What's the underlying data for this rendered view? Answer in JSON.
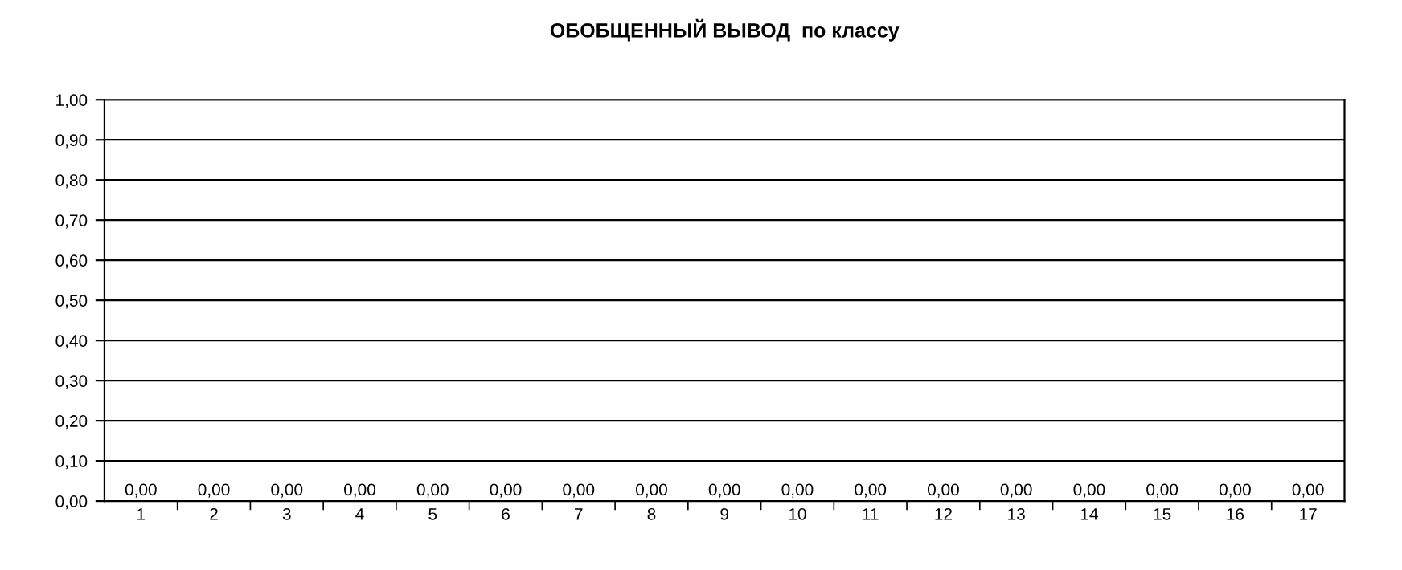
{
  "chart_data": {
    "type": "bar",
    "title": "ОБОБЩЕННЫЙ ВЫВОД  по классу",
    "categories": [
      "1",
      "2",
      "3",
      "4",
      "5",
      "6",
      "7",
      "8",
      "9",
      "10",
      "11",
      "12",
      "13",
      "14",
      "15",
      "16",
      "17"
    ],
    "values": [
      0,
      0,
      0,
      0,
      0,
      0,
      0,
      0,
      0,
      0,
      0,
      0,
      0,
      0,
      0,
      0,
      0
    ],
    "value_labels": [
      "0,00",
      "0,00",
      "0,00",
      "0,00",
      "0,00",
      "0,00",
      "0,00",
      "0,00",
      "0,00",
      "0,00",
      "0,00",
      "0,00",
      "0,00",
      "0,00",
      "0,00",
      "0,00",
      "0,00"
    ],
    "ylim": [
      0,
      1
    ],
    "yticks": [
      {
        "value": 0,
        "label": "0,00"
      },
      {
        "value": 0.1,
        "label": "0,10"
      },
      {
        "value": 0.2,
        "label": "0,20"
      },
      {
        "value": 0.3,
        "label": "0,30"
      },
      {
        "value": 0.4,
        "label": "0,40"
      },
      {
        "value": 0.5,
        "label": "0,50"
      },
      {
        "value": 0.6,
        "label": "0,60"
      },
      {
        "value": 0.7,
        "label": "0,70"
      },
      {
        "value": 0.8,
        "label": "0,80"
      },
      {
        "value": 0.9,
        "label": "0,90"
      },
      {
        "value": 1,
        "label": "1,00"
      }
    ],
    "grid": "y",
    "legend": false
  }
}
